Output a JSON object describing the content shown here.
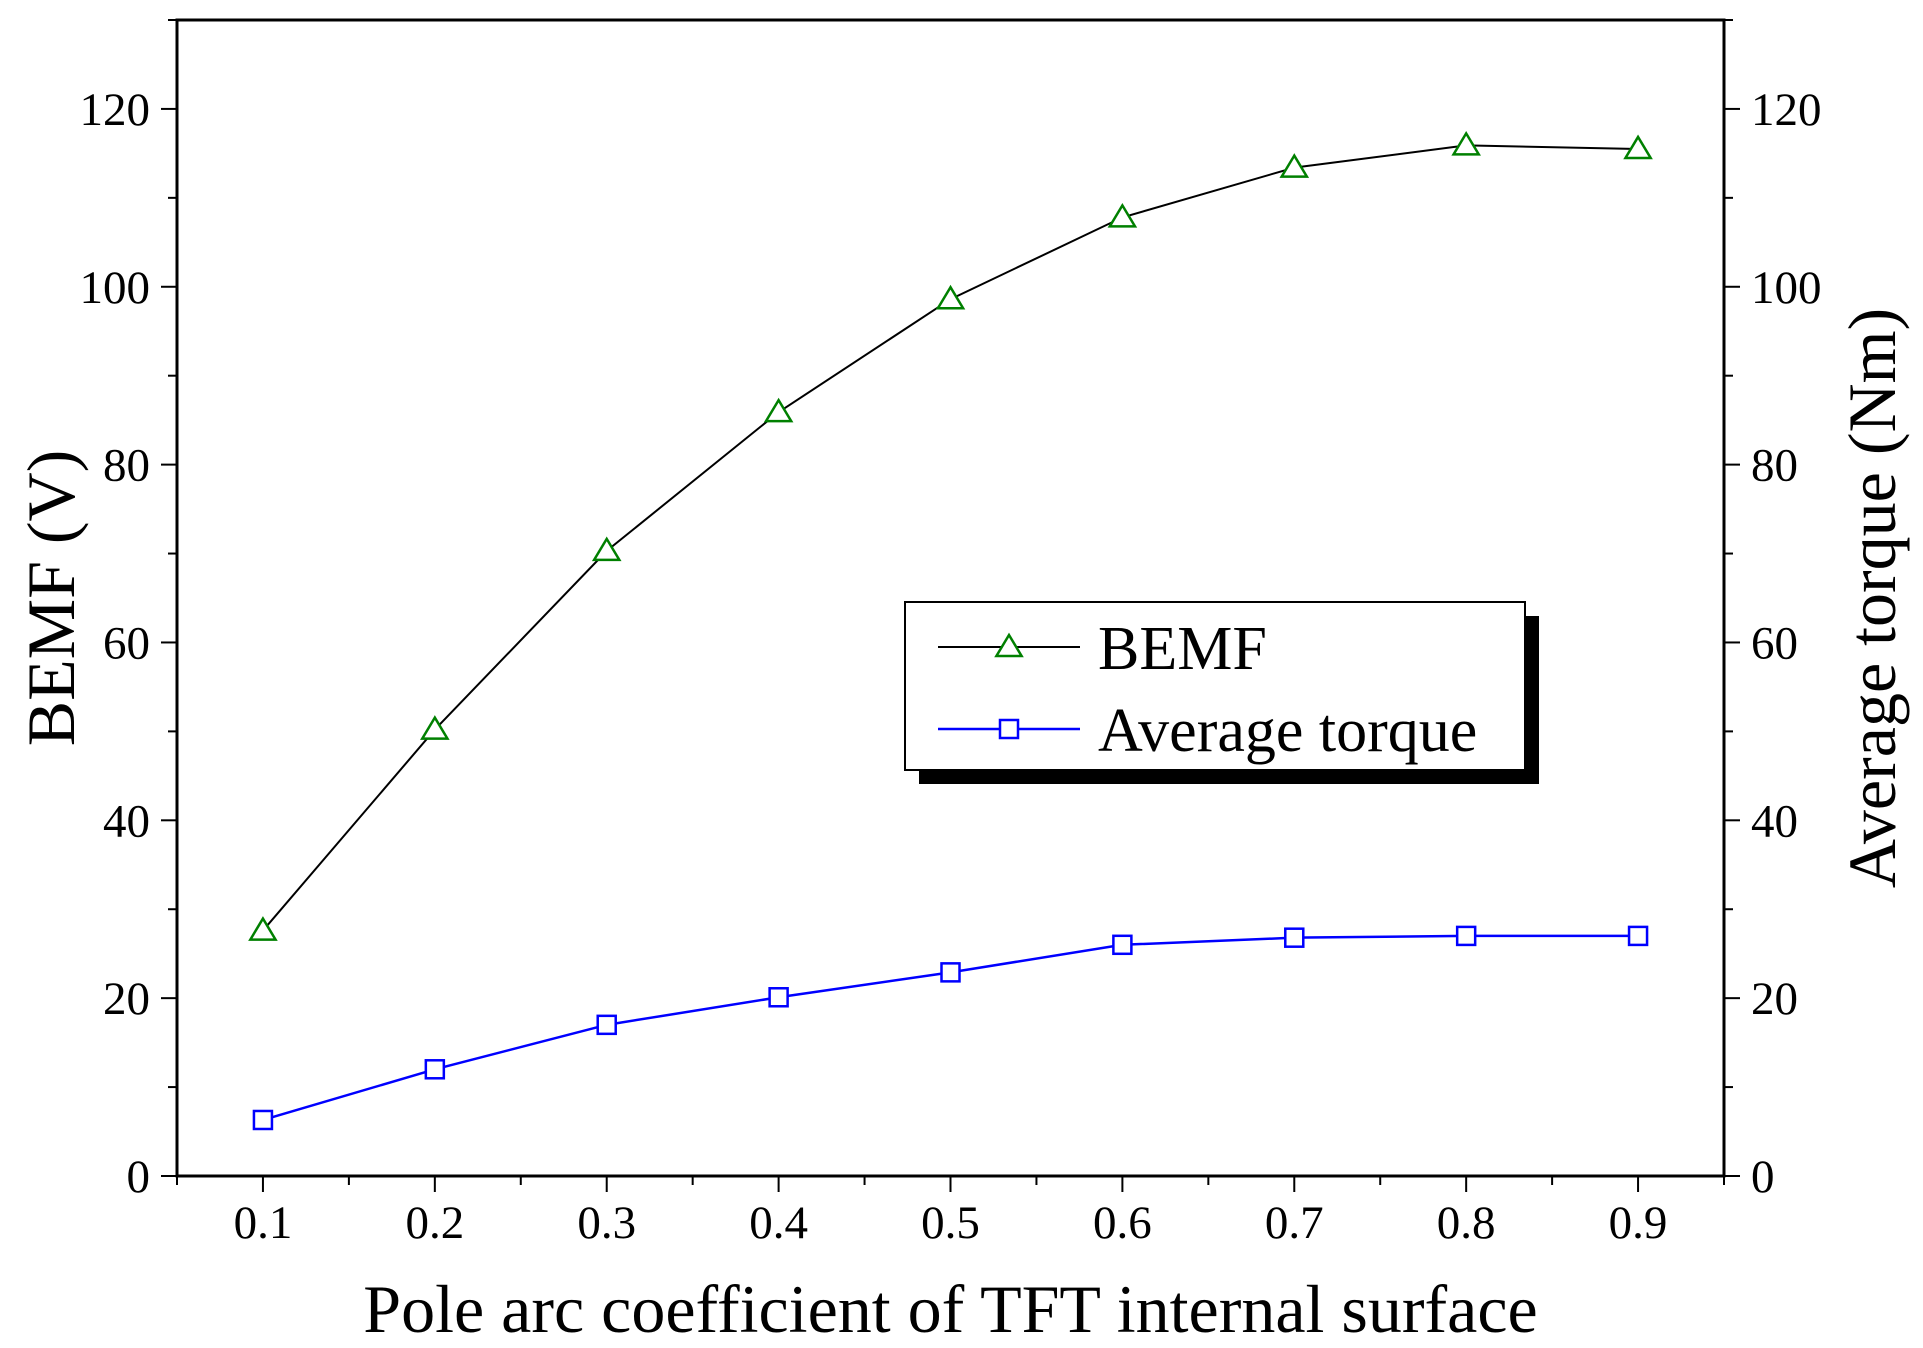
{
  "chart_data": {
    "type": "line",
    "title": "",
    "xlabel": "Pole arc coefficient of TFT internal surface",
    "ylabel": "BEMF (V)",
    "y2label": "Average torque (Nm)",
    "xlim": [
      0.05,
      0.95
    ],
    "ylim": [
      0,
      130
    ],
    "y2lim": [
      0,
      130
    ],
    "x": [
      0.1,
      0.2,
      0.3,
      0.4,
      0.5,
      0.6,
      0.7,
      0.8,
      0.9
    ],
    "x_tick_labels": [
      "0.1",
      "0.2",
      "0.3",
      "0.4",
      "0.5",
      "0.6",
      "0.7",
      "0.8",
      "0.9"
    ],
    "y_ticks": [
      0,
      20,
      40,
      60,
      80,
      100,
      120
    ],
    "y_tick_labels": [
      "0",
      "20",
      "40",
      "60",
      "80",
      "100",
      "120"
    ],
    "y2_ticks": [
      0,
      20,
      40,
      60,
      80,
      100,
      120
    ],
    "y2_tick_labels": [
      "0",
      "20",
      "40",
      "60",
      "80",
      "100",
      "120"
    ],
    "grid": false,
    "legend_position": "center-right",
    "series": [
      {
        "name": "BEMF",
        "axis": "left",
        "marker": "triangle",
        "line_color": "#000000",
        "marker_color": "#008000",
        "values": [
          27.6,
          50.2,
          70.3,
          85.9,
          98.6,
          107.8,
          113.4,
          115.9,
          115.5
        ]
      },
      {
        "name": "Average torque",
        "axis": "right",
        "marker": "square",
        "line_color": "#0000ff",
        "marker_color": "#0000ff",
        "values": [
          6.3,
          12.0,
          17.0,
          20.1,
          22.9,
          26.0,
          26.8,
          27.0,
          27.0
        ]
      }
    ]
  }
}
